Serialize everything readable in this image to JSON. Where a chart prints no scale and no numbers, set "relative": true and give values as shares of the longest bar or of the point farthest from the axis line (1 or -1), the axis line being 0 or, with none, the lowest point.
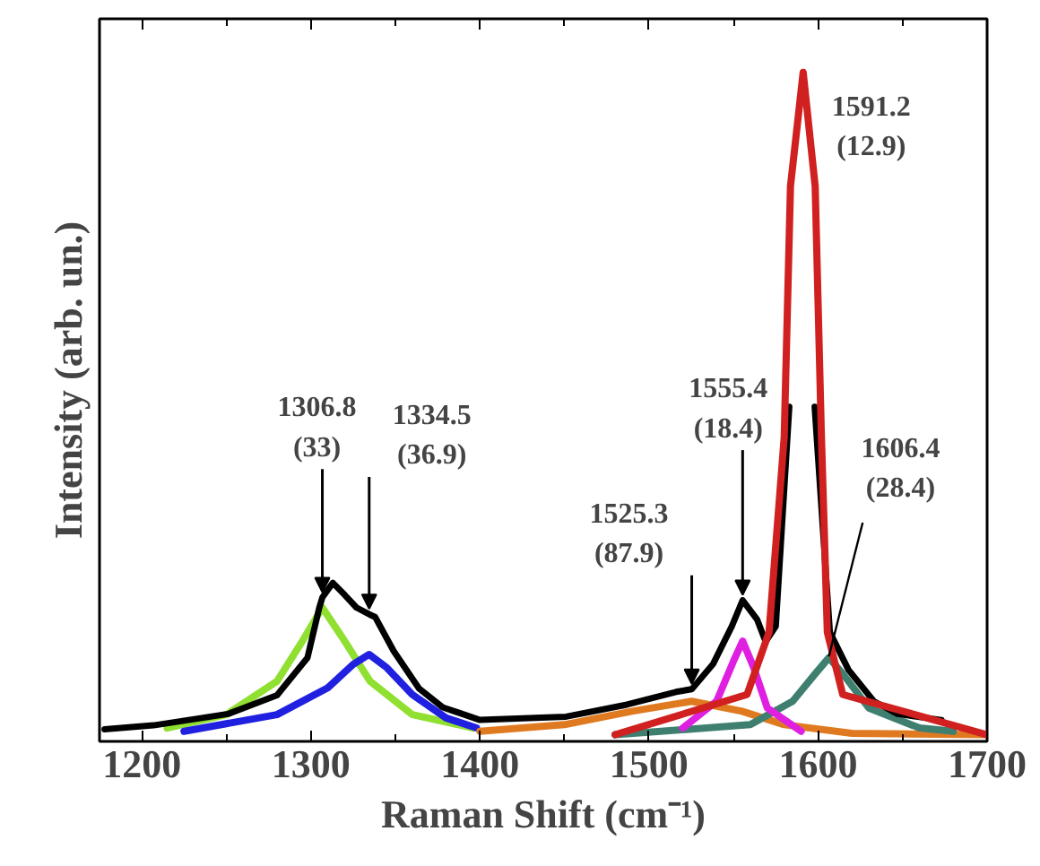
{
  "chart_data": {
    "type": "line",
    "xlabel": "Raman Shift (cm⁻¹)",
    "ylabel": "Intensity (arb. un.)",
    "relative": true,
    "xlim": [
      1175,
      1700
    ],
    "xticks": [
      1200,
      1300,
      1400,
      1500,
      1600,
      1700
    ],
    "grid": false,
    "marker": "none",
    "line_style": "solid",
    "series": [
      {
        "color": "#8fe030",
        "x": [
          1215,
          1250,
          1280,
          1295,
          1306.8,
          1320,
          1335,
          1360,
          1396
        ],
        "values": [
          0.02,
          0.04,
          0.09,
          0.15,
          0.2,
          0.15,
          0.09,
          0.04,
          0.02
        ]
      },
      {
        "color": "#2020e0",
        "x": [
          1225,
          1280,
          1310,
          1325,
          1334.5,
          1345,
          1360,
          1380,
          1398
        ],
        "values": [
          0.015,
          0.04,
          0.08,
          0.115,
          0.13,
          0.11,
          0.07,
          0.035,
          0.02
        ]
      },
      {
        "color": "#e07a20",
        "x": [
          1400,
          1450,
          1490,
          1525.3,
          1555,
          1580,
          1620,
          1700
        ],
        "values": [
          0.015,
          0.025,
          0.045,
          0.06,
          0.045,
          0.025,
          0.012,
          0.01
        ]
      },
      {
        "color": "#3f7f70",
        "x": [
          1480,
          1560,
          1585,
          1598,
          1606.4,
          1615,
          1630,
          1660,
          1680
        ],
        "values": [
          0.01,
          0.025,
          0.06,
          0.1,
          0.125,
          0.1,
          0.05,
          0.02,
          0.015
        ]
      },
      {
        "color": "#e020e0",
        "x": [
          1520,
          1540,
          1550,
          1555.4,
          1562,
          1570,
          1590
        ],
        "values": [
          0.02,
          0.06,
          0.12,
          0.15,
          0.11,
          0.05,
          0.015
        ]
      },
      {
        "color": "#000000",
        "x": [
          1178,
          1207,
          1251,
          1280,
          1298,
          1305,
          1306.8,
          1313,
          1320,
          1327,
          1334.5,
          1338,
          1349,
          1364,
          1378,
          1400,
          1451,
          1487,
          1516,
          1525.3,
          1538,
          1549,
          1555.4,
          1564,
          1569,
          1575,
          1583,
          1591,
          1598,
          1607,
          1618,
          1633,
          1647,
          1673
        ],
        "values": [
          0.018,
          0.024,
          0.041,
          0.069,
          0.125,
          0.2,
          0.215,
          0.237,
          0.219,
          0.2,
          0.19,
          0.186,
          0.135,
          0.079,
          0.051,
          0.032,
          0.037,
          0.055,
          0.074,
          0.078,
          0.116,
          0.172,
          0.211,
          0.182,
          0.149,
          0.172,
          0.5,
          null,
          0.5,
          0.163,
          0.107,
          0.06,
          0.041,
          0.032
        ]
      },
      {
        "color": "#d02020",
        "x": [
          1480,
          1558,
          1571,
          1580,
          1583.7,
          1591.2,
          1598.3,
          1602,
          1605.5,
          1614.6,
          1700
        ],
        "values": [
          0.01,
          0.07,
          0.163,
          0.455,
          0.83,
          1.0,
          0.83,
          0.455,
          0.163,
          0.07,
          0.01
        ]
      }
    ],
    "annotations": [
      {
        "text": "1306.8\n(33)",
        "x": 1306.8,
        "y": 0.215
      },
      {
        "text": "1334.5\n(36.9)",
        "x": 1334.5,
        "y": 0.19
      },
      {
        "text": "1525.3\n(87.9)",
        "x": 1525.3,
        "y": 0.078
      },
      {
        "text": "1555.4\n(18.4)",
        "x": 1555.4,
        "y": 0.211
      },
      {
        "text": "1591.2\n(12.9)",
        "x": 1591.2,
        "y": 1.0
      },
      {
        "text": "1606.4\n(28.4)",
        "x": 1606.4,
        "y": 0.127
      }
    ]
  }
}
